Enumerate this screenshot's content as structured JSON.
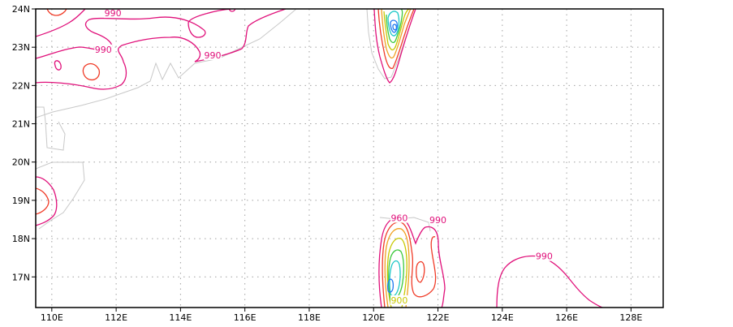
{
  "map": {
    "lon_range": [
      109.5,
      129.0
    ],
    "lat_range": [
      16.2,
      24.0
    ],
    "x_ticks": [
      {
        "value": 110,
        "label": "110E"
      },
      {
        "value": 112,
        "label": "112E"
      },
      {
        "value": 114,
        "label": "114E"
      },
      {
        "value": 116,
        "label": "116E"
      },
      {
        "value": 118,
        "label": "118E"
      },
      {
        "value": 120,
        "label": "120E"
      },
      {
        "value": 122,
        "label": "122E"
      },
      {
        "value": 124,
        "label": "124E"
      },
      {
        "value": 126,
        "label": "126E"
      },
      {
        "value": 128,
        "label": "128E"
      }
    ],
    "y_ticks": [
      {
        "value": 24,
        "label": "24N"
      },
      {
        "value": 23,
        "label": "23N"
      },
      {
        "value": 22,
        "label": "22N"
      },
      {
        "value": 21,
        "label": "21N"
      },
      {
        "value": 20,
        "label": "20N"
      },
      {
        "value": 19,
        "label": "19N"
      },
      {
        "value": 18,
        "label": "18N"
      },
      {
        "value": 17,
        "label": "17N"
      }
    ],
    "contour_labels": [
      {
        "text": "990",
        "lon": 111.9,
        "lat": 23.85,
        "color": "#e0107a"
      },
      {
        "text": "990",
        "lon": 111.6,
        "lat": 22.9,
        "color": "#e0107a"
      },
      {
        "text": "990",
        "lon": 115.0,
        "lat": 22.75,
        "color": "#e0107a"
      },
      {
        "text": "960",
        "lon": 120.8,
        "lat": 18.5,
        "color": "#e0107a"
      },
      {
        "text": "990",
        "lon": 122.0,
        "lat": 18.45,
        "color": "#e0107a"
      },
      {
        "text": "990",
        "lon": 125.3,
        "lat": 17.5,
        "color": "#e0107a"
      },
      {
        "text": "900",
        "lon": 120.8,
        "lat": 16.35,
        "color": "#c8c800"
      }
    ],
    "colors": {
      "coast": "#c8c8c8",
      "magenta": "#e0107a",
      "red": "#f03c28",
      "orange": "#f0a020",
      "yellow": "#c8c800",
      "green": "#3cc83c",
      "cyan": "#1ec8c8",
      "blue": "#1e78f0",
      "grid": "#a0a0a0"
    }
  }
}
